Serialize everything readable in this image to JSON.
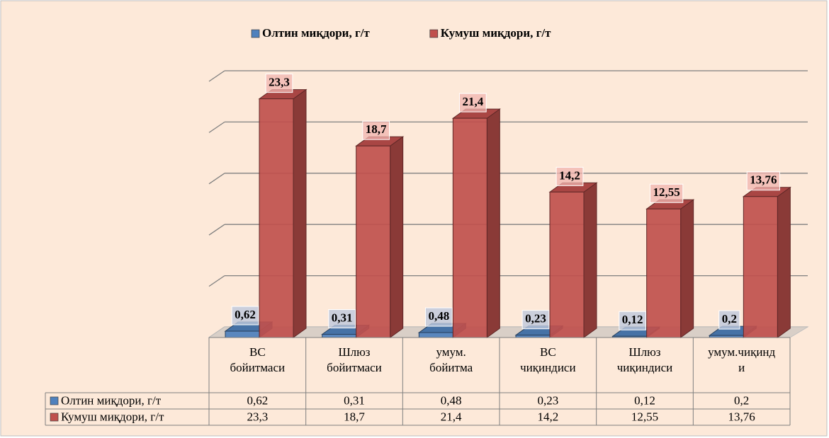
{
  "chart_data": {
    "type": "bar3d",
    "categories": [
      "ВС бойитмаси",
      "Шлюз бойитмаси",
      "умум. бойитма",
      "ВС чиқиндиси",
      "Шлюз чиқиндиси",
      "умум.чиқинди"
    ],
    "series": [
      {
        "name": "Олтин миқдори, г/т",
        "color": "#4f81bd",
        "values": [
          0.62,
          0.31,
          0.48,
          0.23,
          0.12,
          0.2
        ],
        "value_labels": [
          "0,62",
          "0,31",
          "0,48",
          "0,23",
          "0,12",
          "0,2"
        ]
      },
      {
        "name": "Кумуш миқдори, г/т",
        "color": "#c0504d",
        "values": [
          23.3,
          18.7,
          21.4,
          14.2,
          12.55,
          13.76
        ],
        "value_labels": [
          "23,3",
          "18,7",
          "21,4",
          "14,2",
          "12,55",
          "13,76"
        ]
      }
    ],
    "ylim": [
      0,
      25
    ],
    "yticks": [
      0,
      5,
      10,
      15,
      20,
      25
    ],
    "grid": true,
    "legend": "top",
    "data_table": true
  }
}
